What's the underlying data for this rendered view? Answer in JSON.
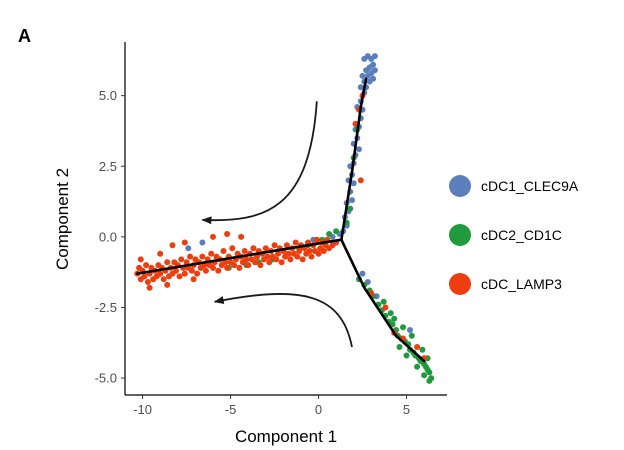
{
  "panel_label": "A",
  "chart_data": {
    "type": "scatter",
    "xlabel": "Component 1",
    "ylabel": "Component 2",
    "xlim": [
      -11,
      7.3
    ],
    "ylim": [
      -5.6,
      6.9
    ],
    "x_ticks": [
      -10,
      -5,
      0,
      5
    ],
    "x_tick_labels": [
      "-10",
      "-5",
      "0",
      "5"
    ],
    "y_ticks": [
      -5,
      -2.5,
      0,
      2.5,
      5
    ],
    "y_tick_labels": [
      "-5.0",
      "-2.5",
      "0.0",
      "2.5",
      "5.0"
    ],
    "grid": false,
    "legend_position": "right",
    "legend": [
      {
        "label": "cDC1_CLEC9A",
        "color": "#5b7fbd"
      },
      {
        "label": "cDC2_CD1C",
        "color": "#1f9a3c"
      },
      {
        "label": "cDC_LAMP3",
        "color": "#ee3d0e"
      }
    ],
    "trajectory": [
      [
        [
          1.3,
          -0.1
        ],
        [
          -10.3,
          -1.3
        ]
      ],
      [
        [
          1.3,
          -0.1
        ],
        [
          1.9,
          2.3
        ],
        [
          2.4,
          4.6
        ],
        [
          2.7,
          5.6
        ]
      ],
      [
        [
          1.3,
          -0.1
        ],
        [
          2.6,
          -1.8
        ],
        [
          4.4,
          -3.5
        ],
        [
          6.0,
          -4.4
        ]
      ]
    ],
    "arrows": [
      [
        [
          -0.1,
          4.8
        ],
        [
          -0.5,
          1.0
        ],
        [
          -3.0,
          0.5
        ],
        [
          -6.6,
          0.6
        ]
      ],
      [
        [
          1.9,
          -3.9
        ],
        [
          1.3,
          -2.0
        ],
        [
          -1.0,
          -1.7
        ],
        [
          -5.9,
          -2.3
        ]
      ]
    ],
    "series": [
      {
        "name": "cDC1_CLEC9A",
        "color": "#5b7fbd",
        "points": [
          [
            2.6,
            6.3
          ],
          [
            2.8,
            6.4
          ],
          [
            3.0,
            6.3
          ],
          [
            3.2,
            6.4
          ],
          [
            3.1,
            6.1
          ],
          [
            2.9,
            6.0
          ],
          [
            2.7,
            5.9
          ],
          [
            3.0,
            5.8
          ],
          [
            3.2,
            5.9
          ],
          [
            2.8,
            5.7
          ],
          [
            2.5,
            5.7
          ],
          [
            2.6,
            5.5
          ],
          [
            2.9,
            5.5
          ],
          [
            3.1,
            5.6
          ],
          [
            2.7,
            5.3
          ],
          [
            2.4,
            5.3
          ],
          [
            2.6,
            5.1
          ],
          [
            2.4,
            4.8
          ],
          [
            2.5,
            4.5
          ],
          [
            2.2,
            4.6
          ],
          [
            2.4,
            4.2
          ],
          [
            2.3,
            3.9
          ],
          [
            2.1,
            3.8
          ],
          [
            2.2,
            3.5
          ],
          [
            2.3,
            3.1
          ],
          [
            2.0,
            3.3
          ],
          [
            2.1,
            2.9
          ],
          [
            2.0,
            2.6
          ],
          [
            1.8,
            2.5
          ],
          [
            1.9,
            2.2
          ],
          [
            2.0,
            1.9
          ],
          [
            1.7,
            2.0
          ],
          [
            1.8,
            1.6
          ],
          [
            1.9,
            1.3
          ],
          [
            1.6,
            1.2
          ],
          [
            1.7,
            0.9
          ],
          [
            1.5,
            0.7
          ],
          [
            1.6,
            0.4
          ],
          [
            1.4,
            0.2
          ],
          [
            1.2,
            0.1
          ],
          [
            0.8,
            0.0
          ],
          [
            0.4,
            -0.2
          ],
          [
            -0.3,
            -0.1
          ],
          [
            -6.6,
            -0.2
          ],
          [
            -7.4,
            -0.4
          ],
          [
            2.5,
            -1.3
          ],
          [
            2.8,
            -1.6
          ],
          [
            3.3,
            -2.1
          ],
          [
            5.2,
            -3.3
          ]
        ]
      },
      {
        "name": "cDC2_CD1C",
        "color": "#1f9a3c",
        "points": [
          [
            2.3,
            -1.5
          ],
          [
            2.6,
            -1.7
          ],
          [
            2.9,
            -1.9
          ],
          [
            3.1,
            -2.1
          ],
          [
            3.4,
            -2.4
          ],
          [
            3.6,
            -2.6
          ],
          [
            3.8,
            -2.8
          ],
          [
            4.0,
            -3.0
          ],
          [
            4.2,
            -3.1
          ],
          [
            4.4,
            -3.3
          ],
          [
            4.5,
            -3.5
          ],
          [
            4.7,
            -3.6
          ],
          [
            4.9,
            -3.7
          ],
          [
            5.1,
            -3.8
          ],
          [
            5.2,
            -4.0
          ],
          [
            5.4,
            -4.1
          ],
          [
            5.5,
            -4.2
          ],
          [
            5.7,
            -4.3
          ],
          [
            5.8,
            -4.4
          ],
          [
            6.0,
            -4.5
          ],
          [
            6.1,
            -4.6
          ],
          [
            6.2,
            -4.7
          ],
          [
            6.3,
            -4.8
          ],
          [
            6.4,
            -5.0
          ],
          [
            6.3,
            -5.1
          ],
          [
            6.0,
            -4.9
          ],
          [
            5.6,
            -4.6
          ],
          [
            5.0,
            -4.2
          ],
          [
            4.6,
            -3.9
          ],
          [
            5.3,
            -3.5
          ],
          [
            4.8,
            -3.2
          ],
          [
            4.1,
            -2.7
          ],
          [
            3.7,
            -2.3
          ],
          [
            4.3,
            -2.9
          ],
          [
            5.9,
            -4.0
          ],
          [
            6.2,
            -4.3
          ],
          [
            2.0,
            2.8
          ],
          [
            2.2,
            3.8
          ],
          [
            1.8,
            1.0
          ],
          [
            1.6,
            0.5
          ],
          [
            0.6,
            0.1
          ],
          [
            1.0,
            0.2
          ],
          [
            -1.7,
            -0.6
          ],
          [
            -2.6,
            -0.8
          ],
          [
            -3.4,
            -0.9
          ],
          [
            -4.1,
            -1.0
          ],
          [
            -1.1,
            -0.4
          ],
          [
            -5.1,
            -1.1
          ],
          [
            -0.6,
            -0.3
          ],
          [
            0.2,
            -0.1
          ]
        ]
      },
      {
        "name": "cDC_LAMP3",
        "color": "#ee3d0e",
        "points": [
          [
            -10.3,
            -1.3
          ],
          [
            -10.2,
            -1.1
          ],
          [
            -10.1,
            -1.5
          ],
          [
            -10.0,
            -1.2
          ],
          [
            -9.9,
            -1.4
          ],
          [
            -9.8,
            -1.0
          ],
          [
            -9.7,
            -1.6
          ],
          [
            -9.6,
            -1.3
          ],
          [
            -9.5,
            -1.1
          ],
          [
            -9.4,
            -1.5
          ],
          [
            -9.3,
            -1.2
          ],
          [
            -9.2,
            -1.4
          ],
          [
            -9.1,
            -1.0
          ],
          [
            -9.0,
            -1.3
          ],
          [
            -8.9,
            -1.1
          ],
          [
            -8.8,
            -1.5
          ],
          [
            -8.7,
            -1.2
          ],
          [
            -8.6,
            -0.9
          ],
          [
            -8.5,
            -1.4
          ],
          [
            -8.4,
            -1.1
          ],
          [
            -8.3,
            -1.3
          ],
          [
            -8.2,
            -0.9
          ],
          [
            -8.1,
            -1.2
          ],
          [
            -8.0,
            -1.0
          ],
          [
            -7.9,
            -1.4
          ],
          [
            -7.8,
            -0.8
          ],
          [
            -7.7,
            -1.1
          ],
          [
            -7.6,
            -1.3
          ],
          [
            -7.5,
            -0.9
          ],
          [
            -7.4,
            -1.1
          ],
          [
            -7.3,
            -0.7
          ],
          [
            -7.2,
            -1.2
          ],
          [
            -7.1,
            -1.0
          ],
          [
            -7.0,
            -0.8
          ],
          [
            -6.9,
            -1.3
          ],
          [
            -6.8,
            -0.9
          ],
          [
            -6.7,
            -1.1
          ],
          [
            -6.6,
            -0.7
          ],
          [
            -6.5,
            -1.0
          ],
          [
            -6.4,
            -1.2
          ],
          [
            -6.3,
            -0.8
          ],
          [
            -6.2,
            -1.0
          ],
          [
            -6.1,
            -0.6
          ],
          [
            -6.0,
            -1.1
          ],
          [
            -5.9,
            -0.9
          ],
          [
            -5.8,
            -0.7
          ],
          [
            -5.7,
            -1.2
          ],
          [
            -5.6,
            -0.8
          ],
          [
            -5.5,
            -1.0
          ],
          [
            -5.4,
            -0.5
          ],
          [
            -5.3,
            -0.9
          ],
          [
            -5.2,
            -1.1
          ],
          [
            -5.1,
            -0.7
          ],
          [
            -5.0,
            -0.9
          ],
          [
            -4.9,
            -0.4
          ],
          [
            -4.8,
            -1.0
          ],
          [
            -4.7,
            -0.8
          ],
          [
            -4.6,
            -0.6
          ],
          [
            -4.5,
            -1.1
          ],
          [
            -4.4,
            -0.7
          ],
          [
            -4.3,
            -0.9
          ],
          [
            -4.2,
            -0.5
          ],
          [
            -4.1,
            -0.8
          ],
          [
            -4.0,
            -1.0
          ],
          [
            -3.9,
            -0.6
          ],
          [
            -3.8,
            -0.8
          ],
          [
            -3.7,
            -0.4
          ],
          [
            -3.6,
            -0.9
          ],
          [
            -3.5,
            -0.7
          ],
          [
            -3.4,
            -0.5
          ],
          [
            -3.3,
            -1.0
          ],
          [
            -3.2,
            -0.6
          ],
          [
            -3.1,
            -0.8
          ],
          [
            -3.0,
            -0.4
          ],
          [
            -2.9,
            -0.7
          ],
          [
            -2.8,
            -0.9
          ],
          [
            -2.7,
            -0.5
          ],
          [
            -2.6,
            -0.7
          ],
          [
            -2.5,
            -0.3
          ],
          [
            -2.4,
            -0.8
          ],
          [
            -2.3,
            -0.6
          ],
          [
            -2.2,
            -0.4
          ],
          [
            -2.1,
            -0.9
          ],
          [
            -2.0,
            -0.5
          ],
          [
            -1.9,
            -0.7
          ],
          [
            -1.8,
            -0.3
          ],
          [
            -1.7,
            -0.6
          ],
          [
            -1.6,
            -0.8
          ],
          [
            -1.5,
            -0.4
          ],
          [
            -1.4,
            -0.6
          ],
          [
            -1.3,
            -0.2
          ],
          [
            -1.2,
            -0.7
          ],
          [
            -1.1,
            -0.5
          ],
          [
            -1.0,
            -0.3
          ],
          [
            -0.9,
            -0.8
          ],
          [
            -0.8,
            -0.4
          ],
          [
            -0.7,
            -0.6
          ],
          [
            -0.6,
            -0.2
          ],
          [
            -0.5,
            -0.5
          ],
          [
            -0.4,
            -0.7
          ],
          [
            -0.3,
            -0.3
          ],
          [
            -0.2,
            -0.5
          ],
          [
            -0.1,
            -0.1
          ],
          [
            0.0,
            -0.6
          ],
          [
            0.1,
            -0.4
          ],
          [
            0.2,
            -0.2
          ],
          [
            0.3,
            -0.5
          ],
          [
            0.4,
            -0.3
          ],
          [
            0.5,
            -0.1
          ],
          [
            0.6,
            -0.4
          ],
          [
            0.8,
            -0.3
          ],
          [
            1.0,
            -0.2
          ],
          [
            -9.0,
            -0.6
          ],
          [
            -8.3,
            -0.3
          ],
          [
            -7.6,
            -0.2
          ],
          [
            -6.0,
            0.0
          ],
          [
            -5.2,
            0.1
          ],
          [
            -4.4,
            0.0
          ],
          [
            -9.6,
            -1.8
          ],
          [
            -8.6,
            -1.7
          ],
          [
            -7.1,
            -1.5
          ],
          [
            -10.1,
            -0.8
          ],
          [
            2.3,
            4.5
          ],
          [
            2.1,
            4.0
          ],
          [
            2.5,
            5.0
          ],
          [
            2.4,
            2.0
          ],
          [
            3.0,
            -2.0
          ],
          [
            3.8,
            -2.5
          ],
          [
            4.8,
            -3.6
          ],
          [
            5.6,
            -3.9
          ],
          [
            6.0,
            -4.3
          ],
          [
            4.3,
            -3.4
          ]
        ]
      }
    ]
  }
}
